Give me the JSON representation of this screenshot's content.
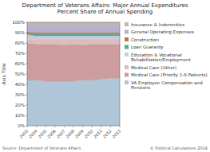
{
  "chart_data": {
    "type": "area",
    "title": "Department of Veterans Affairs: Major Annual Expenditures\nPercent Share of Annual Spending",
    "y_label": "Axis Title",
    "x": [
      2003,
      2004,
      2005,
      2006,
      2007,
      2008,
      2009,
      2010,
      2011,
      2012,
      2013
    ],
    "xlim": [
      2003,
      2013
    ],
    "xticks": [
      2003,
      2004,
      2005,
      2006,
      2007,
      2008,
      2009,
      2010,
      2011,
      2012,
      2013
    ],
    "ylim": [
      0,
      100
    ],
    "yticks": [
      {
        "value": 0,
        "label": "0%"
      },
      {
        "value": 10,
        "label": "10%"
      },
      {
        "value": 20,
        "label": "20%"
      },
      {
        "value": 30,
        "label": "30%"
      },
      {
        "value": 40,
        "label": "40%"
      },
      {
        "value": 50,
        "label": "50%"
      },
      {
        "value": 60,
        "label": "60%"
      },
      {
        "value": 70,
        "label": "70%"
      },
      {
        "value": 80,
        "label": "80%"
      },
      {
        "value": 90,
        "label": "90%"
      },
      {
        "value": 100,
        "label": "100%"
      }
    ],
    "stacked": true,
    "legend": "right",
    "series": [
      {
        "name": "VA Employee Compensation and Pensions",
        "color": "#aec6d8",
        "values": [
          44,
          44,
          43,
          43,
          43,
          43,
          44,
          44,
          45,
          46,
          46
        ]
      },
      {
        "name": "Medical Care (Priority 1-8 Patients)",
        "color": "#cd9d9d",
        "values": [
          36,
          35,
          36,
          36,
          35,
          36,
          34,
          35,
          34,
          33,
          33
        ]
      },
      {
        "name": "Medical Care (Other)",
        "color": "#ddbcbc",
        "values": [
          4,
          4,
          4,
          4,
          5,
          4,
          5,
          4,
          4,
          4,
          4
        ]
      },
      {
        "name": "Education & Vocational Rehabilitation/Employment",
        "color": "#c9c9df",
        "values": [
          4,
          4,
          4,
          4,
          4,
          4,
          4,
          4,
          4,
          4,
          4
        ]
      },
      {
        "name": "Loan Guaranty",
        "color": "#5aaa8a",
        "values": [
          2,
          2,
          2,
          2,
          2,
          2,
          2,
          2,
          2,
          2,
          2
        ]
      },
      {
        "name": "Construction",
        "color": "#c87040",
        "values": [
          1,
          1,
          1,
          1,
          1,
          1,
          1,
          1,
          1,
          1,
          1
        ]
      },
      {
        "name": "General Operating Expenses",
        "color": "#b8aed0",
        "values": [
          6,
          7,
          7,
          7,
          7,
          7,
          7,
          7,
          7,
          7,
          7
        ]
      },
      {
        "name": "Insurance & Indemnities",
        "color": "#c0b8b0",
        "values": [
          3,
          3,
          3,
          3,
          3,
          3,
          3,
          3,
          3,
          3,
          3
        ]
      }
    ],
    "annotations": [
      "Source: Department of Veterans Affairs",
      "© Political Calculations 2014"
    ]
  }
}
